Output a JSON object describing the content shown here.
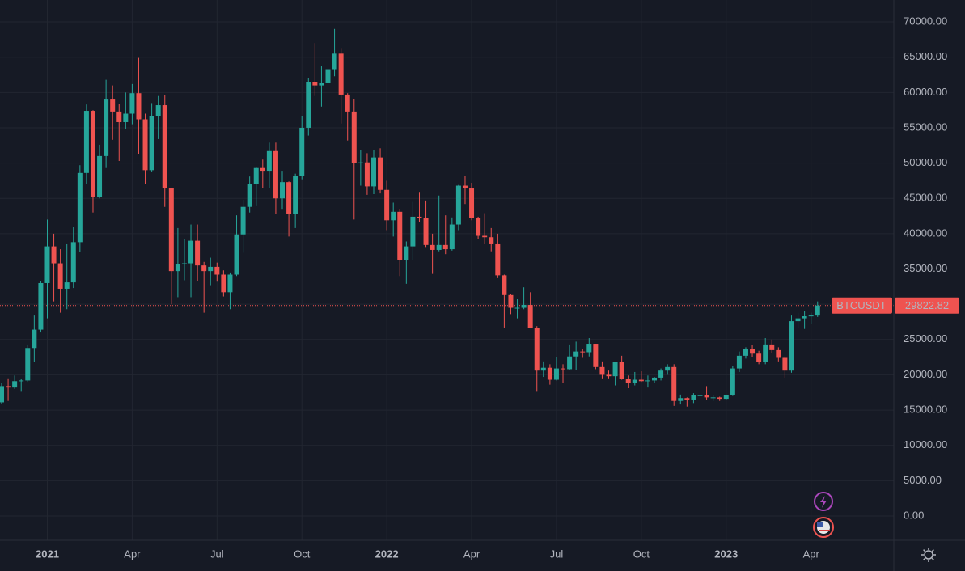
{
  "chart_data": {
    "type": "candlestick",
    "symbol": "BTCUSDT",
    "last_price": 29822.82,
    "up_color": "#26a69a",
    "down_color": "#ef5350",
    "grid": true,
    "ylim": [
      -3440,
      73100
    ],
    "yticks": [
      {
        "value": 0,
        "label": "0.00"
      },
      {
        "value": 5000,
        "label": "5000.00"
      },
      {
        "value": 10000,
        "label": "10000.00"
      },
      {
        "value": 15000,
        "label": "15000.00"
      },
      {
        "value": 20000,
        "label": "20000.00"
      },
      {
        "value": 25000,
        "label": "25000.00"
      },
      {
        "value": 30000,
        "label": "30000.00"
      },
      {
        "value": 35000,
        "label": "35000.00"
      },
      {
        "value": 40000,
        "label": "40000.00"
      },
      {
        "value": 45000,
        "label": "45000.00"
      },
      {
        "value": 50000,
        "label": "50000.00"
      },
      {
        "value": 55000,
        "label": "55000.00"
      },
      {
        "value": 60000,
        "label": "60000.00"
      },
      {
        "value": 65000,
        "label": "65000.00"
      },
      {
        "value": 70000,
        "label": "70000.00"
      }
    ],
    "categories": [
      null,
      null,
      null,
      null,
      null,
      null,
      null,
      "2021",
      null,
      null,
      null,
      null,
      null,
      null,
      null,
      null,
      null,
      null,
      null,
      null,
      "Apr",
      null,
      null,
      null,
      null,
      null,
      null,
      null,
      null,
      null,
      null,
      null,
      null,
      "Jul",
      null,
      null,
      null,
      null,
      null,
      null,
      null,
      null,
      null,
      null,
      null,
      null,
      "Oct",
      null,
      null,
      null,
      null,
      null,
      null,
      null,
      null,
      null,
      null,
      null,
      null,
      "2022",
      null,
      null,
      null,
      null,
      null,
      null,
      null,
      null,
      null,
      null,
      null,
      null,
      "Apr",
      null,
      null,
      null,
      null,
      null,
      null,
      null,
      null,
      null,
      null,
      null,
      null,
      "Jul",
      null,
      null,
      null,
      null,
      null,
      null,
      null,
      null,
      null,
      null,
      null,
      null,
      "Oct",
      null,
      null,
      null,
      null,
      null,
      null,
      null,
      null,
      null,
      null,
      null,
      null,
      "2023",
      null,
      null,
      null,
      null,
      null,
      null,
      null,
      null,
      null,
      null,
      null,
      null,
      "Apr",
      null
    ],
    "open": [
      16100,
      18400,
      18200,
      19100,
      19200,
      23800,
      26400,
      33000,
      38200,
      35800,
      32200,
      33100,
      38800,
      48600,
      57400,
      45200,
      51000,
      59000,
      57300,
      55800,
      57000,
      59900,
      56200,
      49000,
      56600,
      58200,
      46400,
      34700,
      35700,
      35800,
      39000,
      35500,
      34700,
      35300,
      34200,
      31700,
      34200,
      39900,
      43800,
      47000,
      49300,
      48800,
      51700,
      45000,
      47300,
      42800,
      48200,
      55000,
      61500,
      61000,
      61300,
      63300,
      65500,
      59700,
      57300,
      50000,
      50100,
      46700,
      50800,
      46200,
      41900,
      43100,
      36300,
      38200,
      42400,
      42200,
      38400,
      37700,
      38400,
      37800,
      41300,
      46800,
      46400,
      42200,
      39700,
      39500,
      38500,
      34100,
      31300,
      29500,
      29500,
      29900,
      26600,
      20600,
      21000,
      19300,
      20900,
      20800,
      22600,
      23300,
      23200,
      24400,
      21100,
      20000,
      19800,
      21800,
      19400,
      18800,
      19300,
      19100,
      19200,
      19600,
      20600,
      21100,
      16300,
      16700,
      16500,
      17100,
      17100,
      16800,
      16800,
      16600,
      17100,
      20900,
      22700,
      23700,
      23000,
      21800,
      24300,
      23500,
      22400,
      20600,
      27600,
      28000,
      28300,
      28400
    ],
    "high": [
      18800,
      19500,
      19900,
      19400,
      24300,
      28400,
      33300,
      42000,
      40000,
      37800,
      38500,
      40900,
      49700,
      58300,
      57500,
      52600,
      61800,
      61000,
      58400,
      60000,
      61200,
      64900,
      57000,
      58500,
      59500,
      59600,
      46400,
      40800,
      39300,
      41300,
      41300,
      36000,
      36600,
      35900,
      34800,
      34500,
      42600,
      44800,
      48100,
      49400,
      50500,
      52900,
      52900,
      48800,
      47400,
      48500,
      56600,
      62000,
      67000,
      63700,
      64300,
      69000,
      66300,
      59900,
      59000,
      51900,
      51400,
      51900,
      52100,
      47500,
      44400,
      43500,
      38900,
      44500,
      45800,
      44700,
      40000,
      45400,
      42600,
      42300,
      46900,
      48200,
      47200,
      42400,
      42900,
      40800,
      40000,
      34200,
      31400,
      30700,
      32400,
      31700,
      26900,
      21900,
      21500,
      22500,
      21500,
      24300,
      24700,
      23700,
      25200,
      24400,
      21900,
      20600,
      21800,
      22700,
      19900,
      20400,
      20500,
      19900,
      19700,
      20900,
      21500,
      21500,
      17200,
      16800,
      17400,
      17400,
      18400,
      17100,
      16900,
      17200,
      21200,
      23300,
      23900,
      24200,
      23400,
      25200,
      25000,
      23900,
      22600,
      28400,
      28800,
      29100,
      28800,
      30400
    ],
    "low": [
      15900,
      16300,
      18000,
      17600,
      19000,
      21800,
      26000,
      28000,
      30400,
      28800,
      29300,
      32300,
      37400,
      47000,
      43000,
      45000,
      49300,
      53300,
      50300,
      54800,
      55500,
      51300,
      47000,
      48700,
      53400,
      43800,
      30000,
      31000,
      33400,
      31000,
      33300,
      28800,
      32700,
      33200,
      31100,
      29300,
      34000,
      37300,
      43000,
      43900,
      46400,
      46500,
      42800,
      43400,
      39600,
      40800,
      47700,
      53900,
      59500,
      58000,
      59000,
      62300,
      55600,
      53200,
      42000,
      46800,
      45500,
      45600,
      45700,
      40500,
      39600,
      34000,
      32900,
      36200,
      41700,
      38000,
      34300,
      37500,
      37100,
      37600,
      40500,
      44200,
      41900,
      39200,
      38500,
      37500,
      33700,
      26700,
      28600,
      28000,
      29300,
      26600,
      17600,
      19700,
      18600,
      19200,
      18900,
      20700,
      20700,
      22400,
      22600,
      20800,
      19500,
      19500,
      18500,
      19300,
      18100,
      18500,
      19000,
      18200,
      18900,
      19200,
      20000,
      15600,
      15800,
      15500,
      16000,
      16700,
      16500,
      16300,
      16300,
      16500,
      17000,
      20400,
      22300,
      22500,
      21500,
      21500,
      23100,
      21900,
      19600,
      20300,
      26600,
      26500,
      27200,
      28200
    ],
    "close": [
      18400,
      18200,
      19100,
      19200,
      23800,
      26400,
      33000,
      38200,
      35800,
      32200,
      33100,
      38800,
      48600,
      57400,
      45200,
      51000,
      59000,
      57300,
      55800,
      57000,
      59900,
      56200,
      49000,
      56600,
      58200,
      46400,
      34700,
      35700,
      35800,
      39000,
      35500,
      34700,
      35300,
      34200,
      31700,
      34200,
      39900,
      43800,
      47000,
      49300,
      48800,
      51700,
      45000,
      47300,
      42800,
      48200,
      55000,
      61500,
      61000,
      61300,
      63300,
      65500,
      59700,
      57300,
      50000,
      50100,
      46700,
      50800,
      46200,
      41900,
      43100,
      36300,
      38200,
      42400,
      42200,
      38400,
      37700,
      38400,
      37800,
      41300,
      46800,
      46400,
      42200,
      39700,
      39500,
      38500,
      34100,
      31300,
      29500,
      29500,
      29900,
      26600,
      20600,
      21000,
      19300,
      20900,
      20800,
      22600,
      23300,
      23200,
      24400,
      21100,
      20000,
      19800,
      21800,
      19400,
      18800,
      19300,
      19100,
      19200,
      19600,
      20600,
      21100,
      16300,
      16700,
      16500,
      17100,
      17100,
      16800,
      16800,
      16600,
      17100,
      20900,
      22700,
      23700,
      23000,
      21800,
      24300,
      23500,
      22400,
      20600,
      27600,
      28000,
      28300,
      28400,
      29822.82
    ]
  }
}
